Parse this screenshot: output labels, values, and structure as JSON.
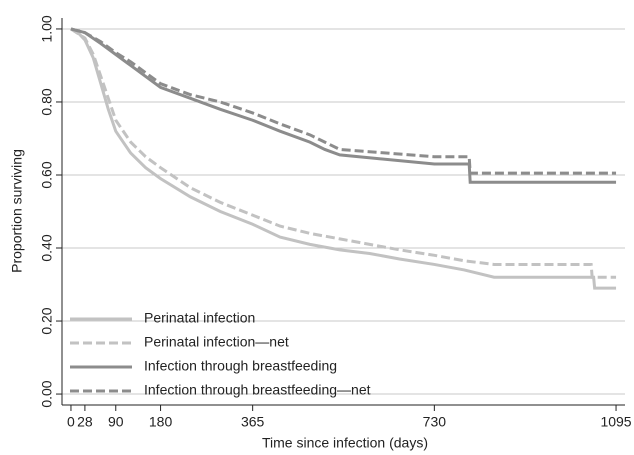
{
  "chart_data": {
    "type": "line",
    "x_label": "Time since infection (days)",
    "y_label": "Proportion surviving",
    "xlim": [
      -18,
      1113
    ],
    "ylim": [
      -0.03,
      1.03
    ],
    "xticks": [
      0,
      28,
      90,
      180,
      365,
      730,
      1095
    ],
    "yticks": [
      {
        "value": 0,
        "label": "0.00"
      },
      {
        "value": 0.2,
        "label": "0.20"
      },
      {
        "value": 0.4,
        "label": "0.40"
      },
      {
        "value": 0.6,
        "label": "0.60"
      },
      {
        "value": 0.8,
        "label": "0.80"
      },
      {
        "value": 1,
        "label": "1.00"
      }
    ],
    "grid": true,
    "legend": "lower left",
    "series": [
      {
        "name": "Perinatal infection",
        "color": "#c2c2c2",
        "dashed": false,
        "x": [
          0,
          14,
          28,
          45,
          60,
          75,
          90,
          120,
          150,
          180,
          240,
          300,
          365,
          420,
          480,
          540,
          600,
          660,
          730,
          790,
          850,
          1050,
          1052,
          1095
        ],
        "values": [
          1.0,
          0.99,
          0.97,
          0.92,
          0.85,
          0.78,
          0.72,
          0.66,
          0.62,
          0.59,
          0.54,
          0.5,
          0.465,
          0.43,
          0.41,
          0.395,
          0.385,
          0.37,
          0.355,
          0.34,
          0.32,
          0.32,
          0.29,
          0.29
        ]
      },
      {
        "name": "Perinatal infection—net",
        "color": "#c2c2c2",
        "dashed": true,
        "x": [
          0,
          28,
          45,
          60,
          75,
          90,
          120,
          150,
          180,
          240,
          300,
          365,
          420,
          480,
          540,
          600,
          660,
          730,
          790,
          850,
          1045,
          1047,
          1095
        ],
        "values": [
          1.0,
          0.975,
          0.93,
          0.87,
          0.81,
          0.75,
          0.69,
          0.65,
          0.62,
          0.565,
          0.525,
          0.49,
          0.46,
          0.44,
          0.425,
          0.41,
          0.395,
          0.38,
          0.365,
          0.355,
          0.355,
          0.32,
          0.32
        ]
      },
      {
        "name": "Infection through breastfeeding",
        "color": "#8c8c8c",
        "dashed": false,
        "x": [
          0,
          28,
          60,
          90,
          120,
          150,
          180,
          240,
          300,
          365,
          420,
          480,
          510,
          540,
          730,
          800,
          802,
          1095
        ],
        "values": [
          1.0,
          0.99,
          0.96,
          0.93,
          0.9,
          0.87,
          0.84,
          0.81,
          0.78,
          0.75,
          0.72,
          0.69,
          0.67,
          0.655,
          0.63,
          0.63,
          0.58,
          0.58
        ]
      },
      {
        "name": "Infection through breastfeeding—net",
        "color": "#8c8c8c",
        "dashed": true,
        "x": [
          0,
          28,
          60,
          90,
          120,
          150,
          180,
          240,
          300,
          365,
          420,
          480,
          510,
          540,
          730,
          800,
          802,
          1095
        ],
        "values": [
          1.0,
          0.99,
          0.965,
          0.935,
          0.91,
          0.88,
          0.85,
          0.82,
          0.8,
          0.77,
          0.74,
          0.71,
          0.69,
          0.67,
          0.65,
          0.65,
          0.605,
          0.605
        ]
      }
    ]
  }
}
